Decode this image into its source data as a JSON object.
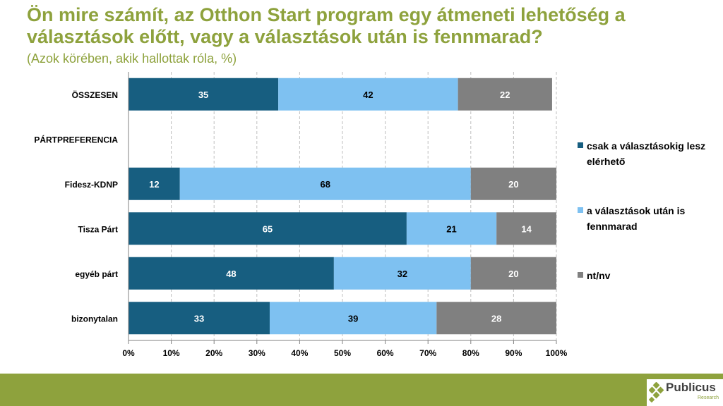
{
  "title": "Ön mire számít, az Otthon Start program egy átmeneti lehetőség a választások előtt, vagy a választások után is fennmarad?",
  "subtitle": "(Azok körében, akik hallottak róla, %)",
  "logo": {
    "name": "Publicus",
    "sub": "Research",
    "icon": "diamond-cluster-icon"
  },
  "colors": {
    "accent": "#8ea23d",
    "series": [
      "#175e80",
      "#7ec1f1",
      "#808080"
    ],
    "grid": "#bfbfbf"
  },
  "chart_data": {
    "type": "bar",
    "orientation": "horizontal",
    "stacked": true,
    "categories": [
      "ÖSSZESEN",
      "PÁRTPREFERENCIA",
      "Fidesz-KDNP",
      "Tisza Párt",
      "egyéb párt",
      "bizonytalan"
    ],
    "series": [
      {
        "name": "csak a választásokig lesz elérhető",
        "values": [
          35,
          null,
          12,
          65,
          48,
          33
        ]
      },
      {
        "name": "a választások után is fennmarad",
        "values": [
          42,
          null,
          68,
          21,
          32,
          39
        ]
      },
      {
        "name": "nt/nv",
        "values": [
          22,
          null,
          20,
          14,
          20,
          28
        ]
      }
    ],
    "xticks": [
      "0%",
      "10%",
      "20%",
      "30%",
      "40%",
      "50%",
      "60%",
      "70%",
      "80%",
      "90%",
      "100%"
    ],
    "xlim": [
      0,
      100
    ],
    "grid": true,
    "legend": "right"
  }
}
